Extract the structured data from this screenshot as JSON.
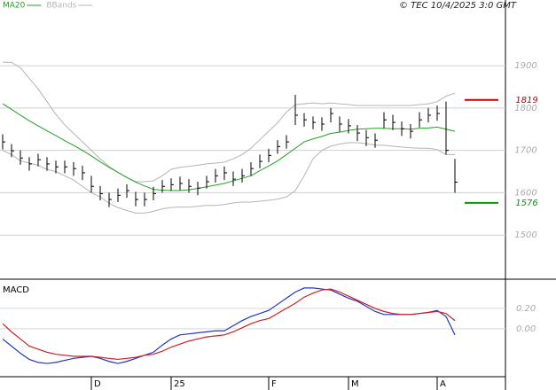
{
  "chart_data": [
    {
      "type": "ohlc",
      "copyright": "© TEC 10/4/2025 3:0 GMT",
      "bar_color": "#000000",
      "ylim": [
        1400,
        2055
      ],
      "yticks": [
        1500,
        1600,
        1700,
        1800,
        1900
      ],
      "grid": true,
      "high": [
        1738,
        1715,
        1700,
        1684,
        1692,
        1684,
        1676,
        1676,
        1672,
        1664,
        1640,
        1616,
        1600,
        1610,
        1620,
        1602,
        1600,
        1614,
        1630,
        1634,
        1638,
        1632,
        1626,
        1640,
        1656,
        1662,
        1650,
        1656,
        1672,
        1690,
        1704,
        1724,
        1736,
        1831,
        1788,
        1780,
        1778,
        1800,
        1780,
        1774,
        1760,
        1748,
        1740,
        1790,
        1784,
        1768,
        1762,
        1790,
        1800,
        1806,
        1815,
        1680
      ],
      "low": [
        1702,
        1684,
        1666,
        1652,
        1662,
        1652,
        1646,
        1646,
        1640,
        1630,
        1600,
        1582,
        1566,
        1578,
        1588,
        1568,
        1568,
        1582,
        1600,
        1604,
        1606,
        1600,
        1594,
        1610,
        1624,
        1630,
        1616,
        1624,
        1640,
        1658,
        1672,
        1692,
        1704,
        1760,
        1756,
        1750,
        1746,
        1766,
        1744,
        1740,
        1722,
        1710,
        1706,
        1752,
        1748,
        1734,
        1728,
        1754,
        1766,
        1770,
        1690,
        1600
      ],
      "close": [
        1720,
        1699,
        1682,
        1668,
        1678,
        1668,
        1661,
        1661,
        1657,
        1647,
        1615,
        1598,
        1584,
        1594,
        1605,
        1584,
        1584,
        1598,
        1615,
        1619,
        1622,
        1615,
        1611,
        1626,
        1640,
        1647,
        1632,
        1640,
        1657,
        1674,
        1688,
        1709,
        1720,
        1783,
        1772,
        1766,
        1762,
        1787,
        1762,
        1758,
        1741,
        1730,
        1724,
        1772,
        1766,
        1751,
        1745,
        1772,
        1783,
        1787,
        1700,
        1625
      ],
      "series": [
        {
          "name": "MA20",
          "color": "#22a022",
          "values": [
            1810,
            1797,
            1783,
            1770,
            1758,
            1746,
            1735,
            1723,
            1712,
            1700,
            1687,
            1673,
            1660,
            1648,
            1636,
            1625,
            1616,
            1608,
            1606,
            1605,
            1605,
            1607,
            1610,
            1614,
            1618,
            1622,
            1628,
            1634,
            1640,
            1652,
            1663,
            1675,
            1690,
            1705,
            1720,
            1727,
            1733,
            1740,
            1743,
            1747,
            1750,
            1751,
            1752,
            1752,
            1751,
            1751,
            1750,
            1752,
            1753,
            1755,
            1750,
            1745
          ]
        },
        {
          "name": "BBands",
          "color": "#b4b4b4",
          "upper": [
            1908,
            1908,
            1895,
            1870,
            1845,
            1815,
            1785,
            1760,
            1740,
            1720,
            1700,
            1680,
            1662,
            1648,
            1636,
            1626,
            1626,
            1628,
            1640,
            1655,
            1660,
            1662,
            1665,
            1668,
            1670,
            1672,
            1680,
            1690,
            1705,
            1725,
            1745,
            1765,
            1790,
            1808,
            1810,
            1812,
            1810,
            1812,
            1810,
            1808,
            1806,
            1806,
            1806,
            1806,
            1806,
            1806,
            1806,
            1808,
            1810,
            1815,
            1828,
            1835
          ],
          "lower": [
            1700,
            1690,
            1675,
            1670,
            1665,
            1655,
            1650,
            1640,
            1630,
            1615,
            1600,
            1590,
            1575,
            1565,
            1558,
            1552,
            1552,
            1556,
            1562,
            1565,
            1566,
            1566,
            1568,
            1570,
            1570,
            1572,
            1576,
            1578,
            1578,
            1580,
            1582,
            1585,
            1590,
            1605,
            1640,
            1680,
            1700,
            1710,
            1715,
            1718,
            1718,
            1716,
            1712,
            1712,
            1710,
            1708,
            1706,
            1705,
            1705,
            1702,
            1690,
            1690
          ]
        }
      ],
      "price_levels": [
        {
          "value": 1819,
          "color": "#c00000"
        },
        {
          "value": 1576,
          "color": "#009900"
        }
      ]
    },
    {
      "type": "line",
      "title": "MACD",
      "categories": [
        null,
        null,
        null,
        null,
        null,
        null,
        null,
        null,
        null,
        null,
        "D",
        null,
        null,
        null,
        null,
        null,
        null,
        null,
        null,
        "25",
        null,
        null,
        null,
        null,
        null,
        null,
        null,
        null,
        null,
        null,
        "F",
        null,
        null,
        null,
        null,
        null,
        null,
        null,
        null,
        "M",
        null,
        null,
        null,
        null,
        null,
        null,
        null,
        null,
        null,
        "A",
        null,
        null
      ],
      "ylim": [
        -0.47,
        0.46
      ],
      "yticks": [
        {
          "value": 0.2,
          "label": "0.20"
        },
        {
          "value": 0,
          "label": "0.00"
        }
      ],
      "series": [
        {
          "color": "#2233cc",
          "values": [
            -0.1,
            -0.17,
            -0.24,
            -0.3,
            -0.33,
            -0.34,
            -0.33,
            -0.31,
            -0.29,
            -0.28,
            -0.27,
            -0.29,
            -0.32,
            -0.34,
            -0.32,
            -0.29,
            -0.26,
            -0.23,
            -0.16,
            -0.1,
            -0.06,
            -0.05,
            -0.04,
            -0.03,
            -0.02,
            -0.02,
            0.03,
            0.08,
            0.12,
            0.15,
            0.18,
            0.24,
            0.3,
            0.36,
            0.4,
            0.4,
            0.39,
            0.38,
            0.34,
            0.3,
            0.27,
            0.22,
            0.17,
            0.14,
            0.14,
            0.14,
            0.14,
            0.15,
            0.16,
            0.18,
            0.12,
            -0.06
          ]
        },
        {
          "color": "#cc2222",
          "values": [
            0.05,
            -0.03,
            -0.1,
            -0.17,
            -0.2,
            -0.23,
            -0.25,
            -0.26,
            -0.27,
            -0.27,
            -0.27,
            -0.28,
            -0.29,
            -0.3,
            -0.29,
            -0.28,
            -0.26,
            -0.25,
            -0.22,
            -0.18,
            -0.15,
            -0.12,
            -0.1,
            -0.08,
            -0.07,
            -0.06,
            -0.03,
            0.01,
            0.05,
            0.08,
            0.1,
            0.15,
            0.2,
            0.25,
            0.31,
            0.35,
            0.38,
            0.39,
            0.36,
            0.32,
            0.28,
            0.24,
            0.2,
            0.17,
            0.15,
            0.14,
            0.14,
            0.15,
            0.16,
            0.17,
            0.15,
            0.08
          ]
        }
      ]
    }
  ]
}
